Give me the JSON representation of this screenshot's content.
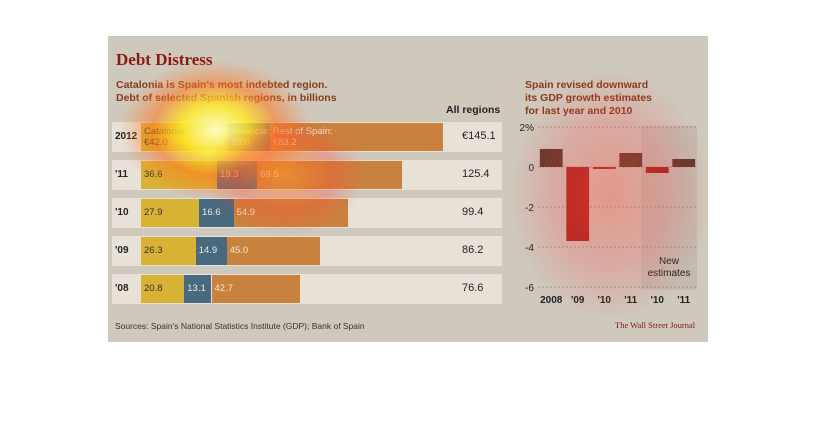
{
  "title": "Debt Distress",
  "subtitle_line1": "Catalonia is Spain's most indebted region.",
  "subtitle_line2": "Debt of selected Spanish regions, in billions",
  "sources": "Sources: Spain's National Statistics Institute (GDP); Bank of Spain",
  "credit": "The Wall Street Journal",
  "colors": {
    "catalonia": "#d8b234",
    "valencia": "#476a80",
    "rest": "#c9823e",
    "rest_alt": "#c76a33",
    "positive_bar": "#5a3a2c",
    "negative_bar": "#a8231e"
  },
  "chart_data": [
    {
      "type": "bar",
      "stacked": true,
      "orientation": "horizontal",
      "title": "Catalonia is Spain's most indebted region.",
      "subtitle": "Debt of selected Spanish regions, in billions",
      "total_header": "All regions",
      "categories": [
        "2012",
        "'11",
        "'10",
        "'09",
        "'08"
      ],
      "series": [
        {
          "name": "Catalonia",
          "values": [
            42.0,
            36.6,
            27.9,
            26.3,
            20.8
          ],
          "labels": [
            "€42.0",
            "36.6",
            "27.9",
            "26.3",
            "20.8"
          ]
        },
        {
          "name": "Valencia",
          "values": [
            20.0,
            19.3,
            16.6,
            14.9,
            13.1
          ],
          "labels": [
            "20.0",
            "19.3",
            "16.6",
            "14.9",
            "13.1"
          ]
        },
        {
          "name": "Rest of Spain",
          "values": [
            83.2,
            69.5,
            54.9,
            45.0,
            42.7
          ],
          "labels": [
            "€83.2",
            "69.5",
            "54.9",
            "45.0",
            "42.7"
          ]
        }
      ],
      "totals": [
        "€145.1",
        "125.4",
        "99.4",
        "86.2",
        "76.6"
      ],
      "total_values": [
        145.1,
        125.4,
        99.4,
        86.2,
        76.6
      ],
      "series_labels": [
        "Catalonia",
        "Valencia",
        "Rest of Spain"
      ]
    },
    {
      "type": "bar",
      "title": "Spain revised downward its GDP growth estimates for last year and 2010",
      "categories": [
        "2008",
        "'09",
        "'10",
        "'11",
        "'10",
        "'11"
      ],
      "values": [
        0.9,
        -3.7,
        -0.1,
        0.7,
        -0.3,
        0.4
      ],
      "ylim": [
        -6,
        2
      ],
      "yticks": [
        2,
        0,
        -2,
        -4,
        -6
      ],
      "ytick_labels": [
        "2%",
        "0",
        "-2",
        "-4",
        "-6"
      ],
      "annotation": "New estimates",
      "grid": true
    }
  ]
}
